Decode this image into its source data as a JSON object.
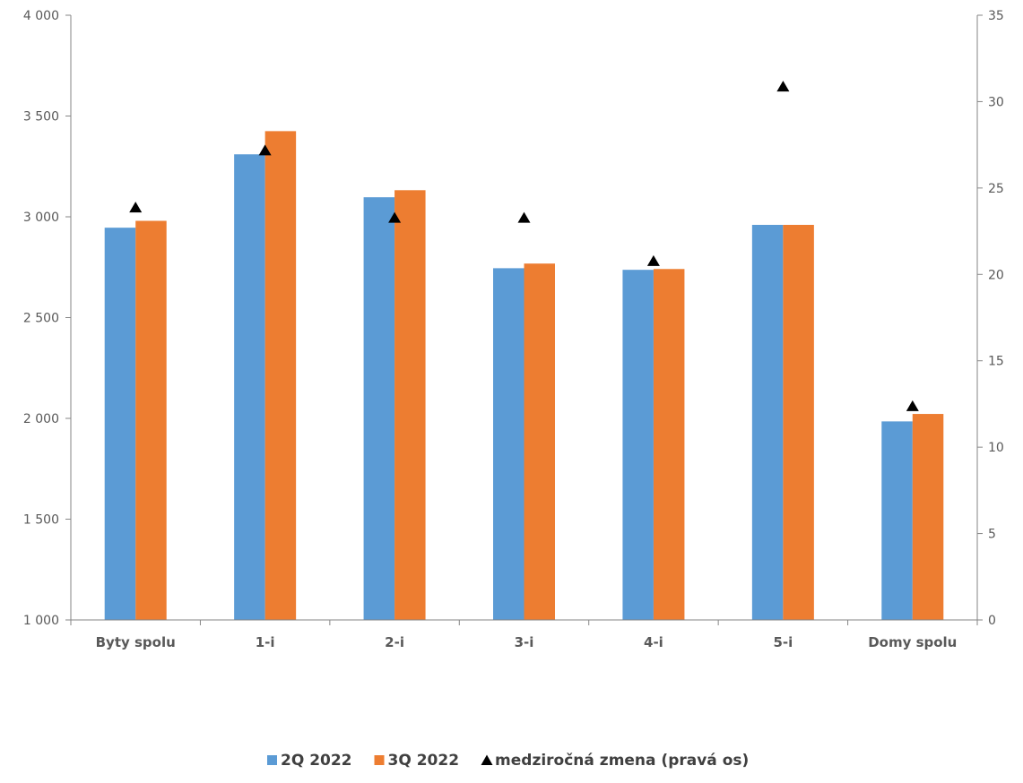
{
  "chart_data": {
    "type": "bar",
    "title": "",
    "xlabel": "",
    "ylabel": "",
    "categories": [
      "Byty spolu",
      "1-i",
      "2-i",
      "3-i",
      "4-i",
      "5-i",
      "Domy spolu"
    ],
    "series": [
      {
        "name": "2Q 2022",
        "type": "bar",
        "axis": "left",
        "color": "#5B9BD5",
        "values": [
          2946,
          3310,
          3097,
          2745,
          2737,
          2960,
          1985
        ]
      },
      {
        "name": "3Q 2022",
        "type": "bar",
        "axis": "left",
        "color": "#ED7D31",
        "values": [
          2980,
          3425,
          3132,
          2768,
          2741,
          2960,
          2022
        ]
      },
      {
        "name": "medziročná zmena (pravá os)",
        "type": "marker",
        "marker": "triangle",
        "axis": "right",
        "color": "#000000",
        "values": [
          23.9,
          27.2,
          23.3,
          23.3,
          20.8,
          30.9,
          12.4
        ]
      }
    ],
    "y_left": {
      "min": 1000,
      "max": 4000,
      "ticks": [
        1000,
        1500,
        2000,
        2500,
        3000,
        3500,
        4000
      ],
      "tick_labels": [
        "1 000",
        "1 500",
        "2 000",
        "2 500",
        "3 000",
        "3 500",
        "4 000"
      ]
    },
    "y_right": {
      "min": 0,
      "max": 35,
      "ticks": [
        0,
        5,
        10,
        15,
        20,
        25,
        30,
        35
      ],
      "tick_labels": [
        "0",
        "5",
        "10",
        "15",
        "20",
        "25",
        "30",
        "35"
      ]
    },
    "grid": false,
    "legend_position": "bottom"
  }
}
